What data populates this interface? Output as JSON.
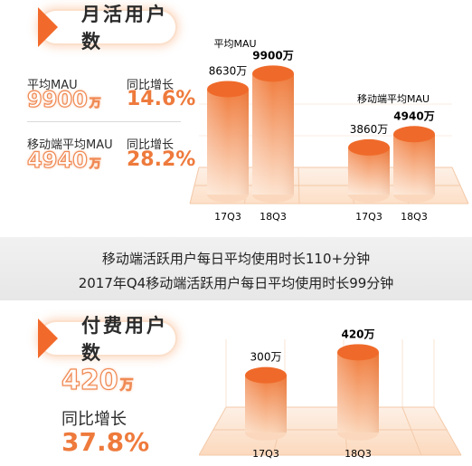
{
  "mau": {
    "title": "月活用户数",
    "stat1": {
      "label": "平均MAU",
      "value": "9900",
      "unit": "万",
      "growth_label": "同比增长",
      "growth": "14.6%"
    },
    "stat2": {
      "label": "移动端平均MAU",
      "value": "4940",
      "unit": "万",
      "growth_label": "同比增长",
      "growth": "28.2%"
    }
  },
  "banner": {
    "line1": "移动端活跃用户每日平均使用时长110+分钟",
    "line2": "2017年Q4移动端活跃用户每日平均使用时长99分钟"
  },
  "paid": {
    "title": "付费用户数",
    "value": "420",
    "unit": "万",
    "growth_label": "同比增长",
    "growth": "37.8%"
  },
  "colors": {
    "accent": "#f26a2b",
    "accent_light": "#f8b48a",
    "grid": "#f3c9a8"
  },
  "chart_data": [
    {
      "type": "bar",
      "title": "平均MAU",
      "categories": [
        "17Q3",
        "18Q3"
      ],
      "series": [
        {
          "values": [
            8630,
            9900
          ]
        }
      ],
      "value_labels": [
        "8630万",
        "9900万"
      ],
      "ylim": [
        0,
        10000
      ]
    },
    {
      "type": "bar",
      "title": "移动端平均MAU",
      "categories": [
        "17Q3",
        "18Q3"
      ],
      "series": [
        {
          "values": [
            3860,
            4940
          ]
        }
      ],
      "value_labels": [
        "3860万",
        "4940万"
      ],
      "ylim": [
        0,
        10000
      ]
    },
    {
      "type": "bar",
      "title": "",
      "categories": [
        "17Q3",
        "18Q3"
      ],
      "series": [
        {
          "values": [
            300,
            420
          ]
        }
      ],
      "value_labels": [
        "300万",
        "420万"
      ],
      "ylim": [
        0,
        450
      ]
    }
  ]
}
